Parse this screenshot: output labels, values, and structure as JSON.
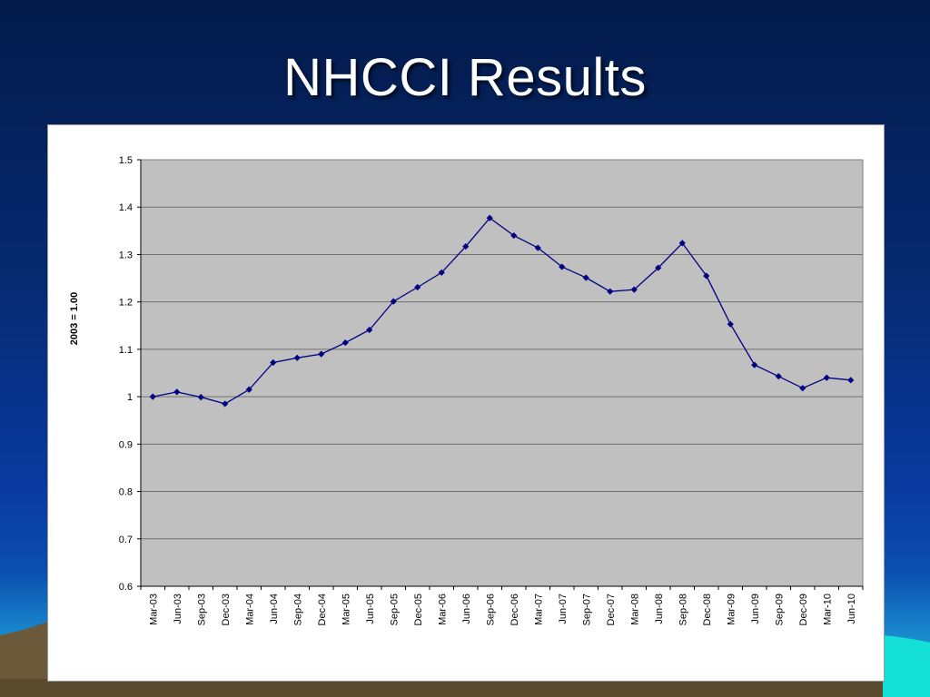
{
  "slide": {
    "title": "NHCCI Results"
  },
  "colors": {
    "plot_background": "#c0c0c0",
    "series_line": "#000080",
    "gridline": "#6f6f6f"
  },
  "chart_data": {
    "type": "line",
    "title": "",
    "xlabel": "",
    "ylabel": "2003 = 1.00",
    "ylim": [
      0.6,
      1.5
    ],
    "yticks": [
      "0.6",
      "0.7",
      "0.8",
      "0.9",
      "1",
      "1.1",
      "1.2",
      "1.3",
      "1.4",
      "1.5"
    ],
    "grid": true,
    "legend": "none",
    "marker": "diamond",
    "categories": [
      "Mar-03",
      "Jun-03",
      "Sep-03",
      "Dec-03",
      "Mar-04",
      "Jun-04",
      "Sep-04",
      "Dec-04",
      "Mar-05",
      "Jun-05",
      "Sep-05",
      "Dec-05",
      "Mar-06",
      "Jun-06",
      "Sep-06",
      "Dec-06",
      "Mar-07",
      "Jun-07",
      "Sep-07",
      "Dec-07",
      "Mar-08",
      "Jun-08",
      "Sep-08",
      "Dec-08",
      "Mar-09",
      "Jun-09",
      "Sep-09",
      "Dec-09",
      "Mar-10",
      "Jun-10"
    ],
    "series": [
      {
        "values": [
          1.0,
          1.01,
          0.999,
          0.985,
          1.015,
          1.072,
          1.082,
          1.09,
          1.114,
          1.141,
          1.201,
          1.231,
          1.262,
          1.317,
          1.377,
          1.34,
          1.314,
          1.274,
          1.251,
          1.222,
          1.226,
          1.272,
          1.324,
          1.255,
          1.153,
          1.067,
          1.043,
          1.018,
          1.04,
          1.035
        ]
      }
    ]
  }
}
